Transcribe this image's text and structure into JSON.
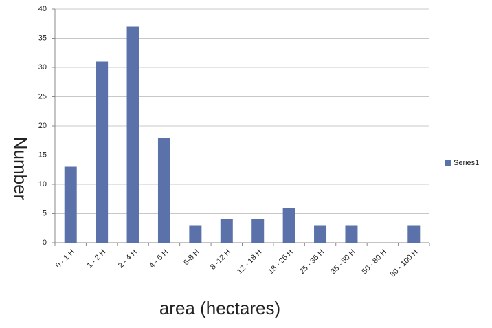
{
  "chart_data": {
    "type": "bar",
    "categories": [
      "0 - 1 H",
      "1 - 2 H",
      "2 - 4 H",
      "4 - 6 H",
      "6-8 H",
      "8 -12 H",
      "12 - 18 H",
      "18 - 25 H",
      "25 - 35 H",
      "35 - 50 H",
      "50 - 80 H",
      "80 - 100 H"
    ],
    "series": [
      {
        "name": "Series1",
        "color": "#5b71a9",
        "values": [
          13,
          31,
          37,
          18,
          3,
          4,
          4,
          6,
          3,
          3,
          0,
          3
        ]
      }
    ],
    "ylim": [
      0,
      40
    ],
    "yticks": [
      0,
      5,
      10,
      15,
      20,
      25,
      30,
      35,
      40
    ],
    "grid": true,
    "y_label": "Number",
    "x_label": "area (hectares)",
    "legend": "right"
  }
}
